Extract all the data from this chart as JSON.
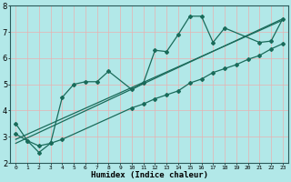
{
  "xlabel": "Humidex (Indice chaleur)",
  "bg_color": "#b2e8e8",
  "grid_color": "#d0f0f0",
  "line_color": "#1a6b5a",
  "xlim": [
    -0.5,
    23.5
  ],
  "ylim": [
    2,
    8
  ],
  "xtick_labels": [
    "0",
    "1",
    "2",
    "3",
    "4",
    "5",
    "6",
    "7",
    "8",
    "9",
    "10",
    "11",
    "12",
    "13",
    "14",
    "15",
    "16",
    "17",
    "18",
    "19",
    "20",
    "21",
    "22",
    "23"
  ],
  "ytick_values": [
    2,
    3,
    4,
    5,
    6,
    7,
    8
  ],
  "line1_x": [
    0,
    1,
    2,
    3,
    4,
    5,
    6,
    7,
    8,
    10,
    11,
    12,
    13,
    14,
    15,
    16,
    17,
    18,
    21,
    22,
    23
  ],
  "line1_y": [
    3.5,
    2.85,
    2.4,
    2.75,
    4.5,
    5.0,
    5.1,
    5.1,
    5.5,
    4.8,
    5.05,
    6.3,
    6.25,
    6.9,
    7.6,
    7.6,
    6.6,
    7.15,
    6.6,
    6.65,
    7.5
  ],
  "line2_x": [
    0,
    1,
    2,
    3,
    4,
    10,
    11,
    12,
    13,
    14,
    15,
    16,
    17,
    18,
    19,
    20,
    21,
    22,
    23
  ],
  "line2_y": [
    3.1,
    2.85,
    2.65,
    2.75,
    2.9,
    4.1,
    4.25,
    4.45,
    4.6,
    4.75,
    5.05,
    5.2,
    5.45,
    5.6,
    5.75,
    5.95,
    6.1,
    6.35,
    6.55
  ],
  "line3_x": [
    0,
    23
  ],
  "line3_y": [
    2.75,
    7.5
  ],
  "line4_x": [
    0,
    23
  ],
  "line4_y": [
    2.9,
    7.45
  ]
}
